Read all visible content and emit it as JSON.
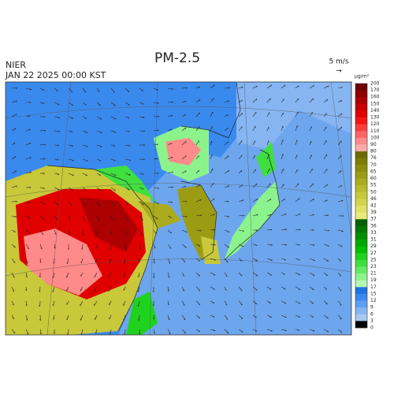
{
  "header": {
    "title": "PM-2.5",
    "agency": "NIER",
    "datetime": "JAN 22 2025 00:00 KST"
  },
  "scale": {
    "label": "5 m/s",
    "arrow": "→"
  },
  "colorbar": {
    "unit": "μg/m³",
    "ticks": [
      200,
      170,
      160,
      150,
      140,
      130,
      120,
      110,
      100,
      90,
      80,
      76,
      70,
      65,
      60,
      55,
      50,
      46,
      42,
      39,
      37,
      36,
      33,
      31,
      29,
      27,
      25,
      23,
      21,
      19,
      17,
      15,
      12,
      9,
      6,
      3,
      0
    ],
    "colors": [
      "#6e0000",
      "#8e0000",
      "#ad0000",
      "#c80000",
      "#e00000",
      "#f51414",
      "#ff3c3c",
      "#ff6464",
      "#ff8a8a",
      "#ffaaaa",
      "#6b6b00",
      "#7c7c00",
      "#8d8d0a",
      "#9c9c14",
      "#abab20",
      "#baba2c",
      "#c8c83a",
      "#d4d44c",
      "#e0e062",
      "#eaea7a",
      "#006000",
      "#007800",
      "#008f00",
      "#00a800",
      "#00bf00",
      "#1ed21e",
      "#3fdf3f",
      "#62ea62",
      "#8cf38c",
      "#b4fab4",
      "#1e74e0",
      "#3a8aee",
      "#5e9ff2",
      "#86b5f2",
      "#a8c8ee"
    ]
  }
}
